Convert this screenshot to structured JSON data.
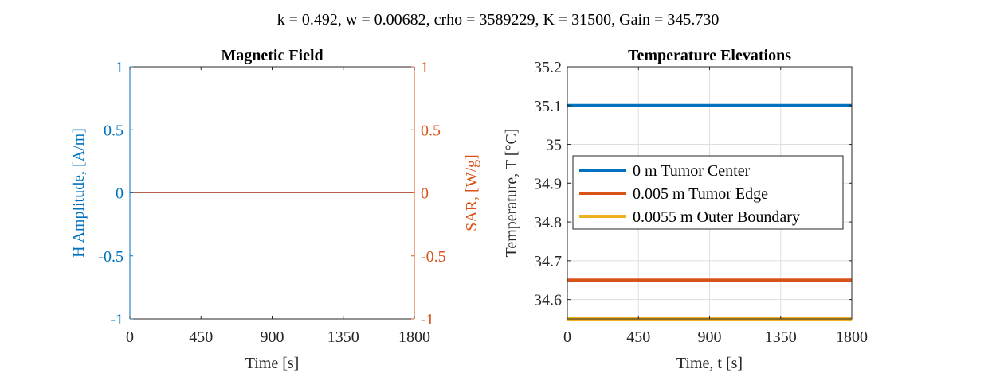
{
  "figure": {
    "title": "k = 0.492, w = 0.00682, crho = 3589229, K = 31500, Gain = 345.730"
  },
  "colors": {
    "blue": "#0072BD",
    "orange": "#D95319",
    "yellow": "#EDB120",
    "axis": "#262626",
    "grid": "#DFDFDF"
  },
  "chart_data": [
    {
      "type": "line",
      "title": "Magnetic Field",
      "xlabel": "Time [s]",
      "ylabel_left": "H Amplitude, [A/m]",
      "ylabel_right": "SAR, [W/g]",
      "xlim": [
        0,
        1800
      ],
      "ylim_left": [
        -1,
        1
      ],
      "ylim_right": [
        -1,
        1
      ],
      "xticks": [
        0,
        450,
        900,
        1350,
        1800
      ],
      "xtick_labels": [
        "0",
        "450",
        "900",
        "1350",
        "1800"
      ],
      "yticks_left": [
        -1,
        -0.5,
        0,
        0.5,
        1
      ],
      "ytick_labels_left": [
        "-1",
        "-0.5",
        "0",
        "0.5",
        "1"
      ],
      "yticks_right": [
        -1,
        -0.5,
        0,
        0.5,
        1
      ],
      "ytick_labels_right": [
        "-1",
        "-0.5",
        "0",
        "0.5",
        "1"
      ],
      "grid": false,
      "series": [
        {
          "axis": "left",
          "color": "#0072BD",
          "x": [
            0,
            1800
          ],
          "y": [
            0,
            0
          ]
        },
        {
          "axis": "right",
          "color": "#D95319",
          "x": [
            0,
            1800
          ],
          "y": [
            0,
            0
          ]
        }
      ]
    },
    {
      "type": "line",
      "title": "Temperature Elevations",
      "xlabel": "Time, t [s]",
      "ylabel": "Temperature, T [°C]",
      "xlim": [
        0,
        1800
      ],
      "ylim": [
        34.55,
        35.2
      ],
      "xticks": [
        0,
        450,
        900,
        1350,
        1800
      ],
      "xtick_labels": [
        "0",
        "450",
        "900",
        "1350",
        "1800"
      ],
      "yticks": [
        34.6,
        34.7,
        34.8,
        34.9,
        35,
        35.1,
        35.2
      ],
      "ytick_labels": [
        "34.6",
        "34.7",
        "34.8",
        "34.9",
        "35",
        "35.1",
        "35.2"
      ],
      "grid": true,
      "legend_position": "middle-right",
      "series": [
        {
          "name": "0 m Tumor Center",
          "color": "#0072BD",
          "x": [
            0,
            1800
          ],
          "y": [
            35.1,
            35.1
          ]
        },
        {
          "name": "0.005 m Tumor Edge",
          "color": "#D95319",
          "x": [
            0,
            1800
          ],
          "y": [
            34.65,
            34.65
          ]
        },
        {
          "name": "0.0055 m Outer Boundary",
          "color": "#EDB120",
          "x": [
            0,
            1800
          ],
          "y": [
            34.55,
            34.55
          ]
        }
      ]
    }
  ]
}
